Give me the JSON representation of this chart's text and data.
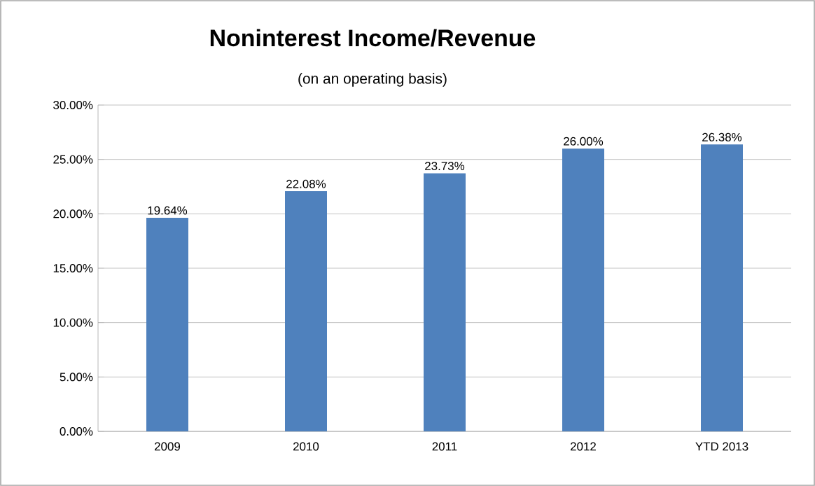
{
  "chart_data": {
    "type": "bar",
    "title": "Noninterest Income/Revenue",
    "subtitle": "(on an operating basis)",
    "categories": [
      "2009",
      "2010",
      "2011",
      "2012",
      "YTD 2013"
    ],
    "values": [
      19.64,
      22.08,
      23.73,
      26.0,
      26.38
    ],
    "value_labels": [
      "19.64%",
      "22.08%",
      "23.73%",
      "26.00%",
      "26.38%"
    ],
    "color": "#4f81bd",
    "ylim": [
      0,
      30
    ],
    "yticks": [
      {
        "value": 0,
        "label": "0.00%"
      },
      {
        "value": 5,
        "label": "5.00%"
      },
      {
        "value": 10,
        "label": "10.00%"
      },
      {
        "value": 15,
        "label": "15.00%"
      },
      {
        "value": 20,
        "label": "20.00%"
      },
      {
        "value": 25,
        "label": "25.00%"
      },
      {
        "value": 30,
        "label": "30.00%"
      }
    ],
    "grid": "y"
  }
}
